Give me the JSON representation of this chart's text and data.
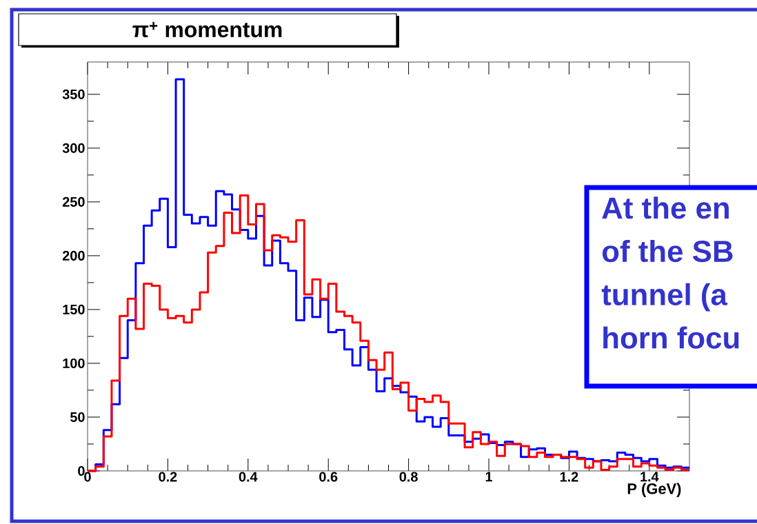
{
  "chart_data": {
    "type": "histogram",
    "title": "π$^{+}$ momentum",
    "xlabel": "P (GeV)",
    "bins": [
      0,
      0.02,
      0.04,
      0.06,
      0.08,
      0.1,
      0.12,
      0.14,
      0.16,
      0.18,
      0.2,
      0.22,
      0.24,
      0.26,
      0.28,
      0.3,
      0.32,
      0.34,
      0.36,
      0.38,
      0.4,
      0.42,
      0.44,
      0.46,
      0.48,
      0.5,
      0.52,
      0.54,
      0.56,
      0.58,
      0.6,
      0.62,
      0.64,
      0.66,
      0.68,
      0.7,
      0.72,
      0.74,
      0.76,
      0.78,
      0.8,
      0.82,
      0.84,
      0.86,
      0.88,
      0.9,
      0.92,
      0.94,
      0.96,
      0.98,
      1,
      1.02,
      1.04,
      1.06,
      1.08,
      1.1,
      1.12,
      1.14,
      1.16,
      1.18,
      1.2,
      1.22,
      1.24,
      1.26,
      1.28,
      1.3,
      1.32,
      1.34,
      1.36,
      1.38,
      1.4,
      1.42,
      1.44,
      1.46,
      1.48,
      1.5
    ],
    "series": [
      {
        "color": "#0000ff",
        "values": [
          0,
          6,
          38,
          62,
          105,
          140,
          193,
          228,
          242,
          253,
          208,
          364,
          238,
          230,
          236,
          228,
          260,
          257,
          243,
          224,
          216,
          237,
          191,
          214,
          193,
          186,
          140,
          161,
          143,
          159,
          129,
          131,
          113,
          98,
          115,
          94,
          74,
          86,
          79,
          73,
          69,
          46,
          50,
          41,
          49,
          33,
          33,
          27,
          30,
          34,
          26,
          24,
          27,
          25,
          13,
          20,
          21,
          15,
          15,
          12,
          18,
          12,
          11,
          9,
          10,
          9,
          17,
          15,
          12,
          9,
          11,
          5,
          3,
          4,
          3
        ]
      },
      {
        "color": "#ff0000",
        "values": [
          0,
          4,
          32,
          84,
          144,
          160,
          132,
          174,
          172,
          150,
          142,
          144,
          138,
          150,
          166,
          203,
          209,
          240,
          221,
          256,
          229,
          248,
          205,
          219,
          217,
          213,
          233,
          164,
          178,
          160,
          174,
          148,
          144,
          138,
          121,
          103,
          94,
          110,
          76,
          82,
          56,
          67,
          64,
          70,
          64,
          44,
          44,
          22,
          36,
          25,
          27,
          14,
          25,
          25,
          23,
          13,
          17,
          13,
          15,
          13,
          13,
          11,
          3,
          9,
          1,
          4,
          11,
          11,
          4,
          7,
          5,
          3,
          1,
          3,
          1
        ]
      }
    ],
    "xlim": [
      0,
      1.5
    ],
    "ylim": [
      0,
      380
    ],
    "xticks": [
      0,
      0.2,
      0.4,
      0.6,
      0.8,
      1,
      1.2,
      1.4
    ],
    "yticks": [
      0,
      50,
      100,
      150,
      200,
      250,
      300,
      350
    ],
    "annotations": [
      "At the en",
      "of the SB",
      "tunnel (a",
      "horn focu"
    ]
  }
}
